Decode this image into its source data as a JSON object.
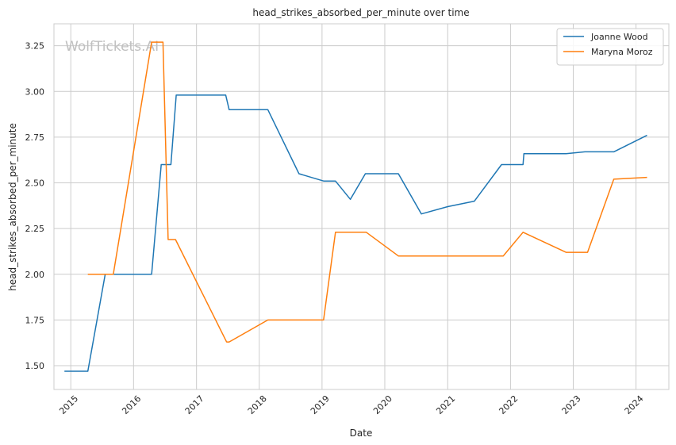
{
  "chart_data": {
    "type": "line",
    "title": "head_strikes_absorbed_per_minute over time",
    "xlabel": "Date",
    "ylabel": "head_strikes_absorbed_per_minute",
    "watermark": "WolfTickets.AI",
    "xlim": [
      "2014-09-25",
      "2024-07-10"
    ],
    "ylim": [
      1.37,
      3.37
    ],
    "x_ticks": [
      "2015-01-01",
      "2016-01-01",
      "2017-01-01",
      "2018-01-01",
      "2019-01-01",
      "2020-01-01",
      "2021-01-01",
      "2022-01-01",
      "2023-01-01",
      "2024-01-01"
    ],
    "x_tick_labels": [
      "2015",
      "2016",
      "2017",
      "2018",
      "2019",
      "2020",
      "2021",
      "2022",
      "2023",
      "2024"
    ],
    "y_ticks": [
      1.5,
      1.75,
      2.0,
      2.25,
      2.5,
      2.75,
      3.0,
      3.25
    ],
    "y_tick_labels": [
      "1.50",
      "1.75",
      "2.00",
      "2.25",
      "2.50",
      "2.75",
      "3.00",
      "3.25"
    ],
    "grid": true,
    "legend_position": "top-right",
    "series": [
      {
        "name": "Joanne Wood",
        "color": "#1f77b4",
        "points": [
          [
            "2014-11-25",
            1.47
          ],
          [
            "2015-04-10",
            1.47
          ],
          [
            "2015-07-20",
            2.0
          ],
          [
            "2016-04-15",
            2.0
          ],
          [
            "2016-06-10",
            2.6
          ],
          [
            "2016-08-05",
            2.6
          ],
          [
            "2016-09-05",
            2.98
          ],
          [
            "2017-06-20",
            2.98
          ],
          [
            "2017-07-10",
            2.9
          ],
          [
            "2018-02-20",
            2.9
          ],
          [
            "2018-08-20",
            2.55
          ],
          [
            "2019-01-10",
            2.51
          ],
          [
            "2019-03-20",
            2.51
          ],
          [
            "2019-06-15",
            2.41
          ],
          [
            "2019-09-10",
            2.55
          ],
          [
            "2020-03-20",
            2.55
          ],
          [
            "2020-08-01",
            2.33
          ],
          [
            "2021-01-01",
            2.37
          ],
          [
            "2021-06-05",
            2.4
          ],
          [
            "2021-11-10",
            2.6
          ],
          [
            "2022-03-15",
            2.6
          ],
          [
            "2022-03-20",
            2.66
          ],
          [
            "2022-11-20",
            2.66
          ],
          [
            "2023-03-10",
            2.67
          ],
          [
            "2023-08-25",
            2.67
          ],
          [
            "2024-03-05",
            2.76
          ]
        ]
      },
      {
        "name": "Maryna Moroz",
        "color": "#ff7f0e",
        "points": [
          [
            "2015-04-10",
            2.0
          ],
          [
            "2015-09-05",
            2.0
          ],
          [
            "2016-04-15",
            3.27
          ],
          [
            "2016-06-20",
            3.27
          ],
          [
            "2016-07-20",
            2.19
          ],
          [
            "2016-09-01",
            2.19
          ],
          [
            "2017-06-25",
            1.63
          ],
          [
            "2017-07-10",
            1.63
          ],
          [
            "2018-02-20",
            1.75
          ],
          [
            "2019-01-10",
            1.75
          ],
          [
            "2019-03-20",
            2.23
          ],
          [
            "2019-09-15",
            2.23
          ],
          [
            "2020-03-20",
            2.1
          ],
          [
            "2021-11-20",
            2.1
          ],
          [
            "2022-03-15",
            2.23
          ],
          [
            "2022-11-20",
            2.12
          ],
          [
            "2023-03-25",
            2.12
          ],
          [
            "2023-08-25",
            2.52
          ],
          [
            "2024-03-05",
            2.53
          ]
        ]
      }
    ]
  }
}
